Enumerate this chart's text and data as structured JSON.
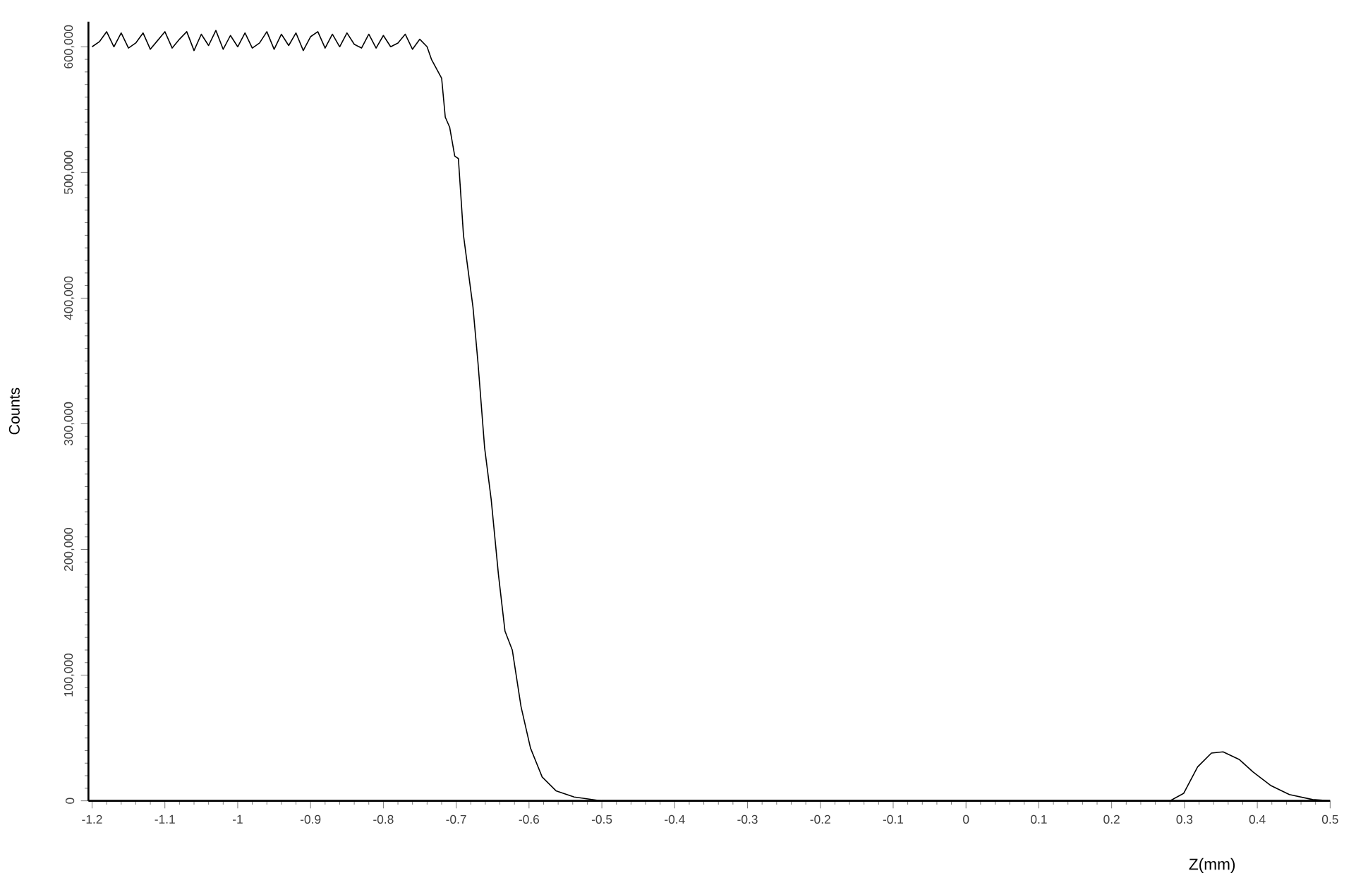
{
  "chart_data": {
    "type": "line",
    "xlabel": "Z(mm)",
    "ylabel": "Counts",
    "xlim": [
      -1.205,
      0.5
    ],
    "ylim": [
      0,
      620000
    ],
    "xticks": [
      -1.2,
      -1.1,
      -1,
      -0.9,
      -0.8,
      -0.7,
      -0.6,
      -0.5,
      -0.4,
      -0.3,
      -0.2,
      -0.1,
      0,
      0.1,
      0.2,
      0.3,
      0.4,
      0.5
    ],
    "yticks": [
      0,
      {
        "value": 100000,
        "label": "100,000"
      },
      {
        "value": 200000,
        "label": "200,000"
      },
      {
        "value": 300000,
        "label": "300,000"
      },
      {
        "value": 400000,
        "label": "400,000"
      },
      {
        "value": 500000,
        "label": "500,000"
      },
      {
        "value": 600000,
        "label": "600,000"
      }
    ],
    "grid": false,
    "marker": "none",
    "line_style": "solid",
    "series": [
      {
        "color": "#000000",
        "x": [
          -1.2,
          -1.19,
          -1.18,
          -1.17,
          -1.16,
          -1.15,
          -1.14,
          -1.13,
          -1.12,
          -1.11,
          -1.1,
          -1.09,
          -1.08,
          -1.07,
          -1.06,
          -1.05,
          -1.04,
          -1.03,
          -1.02,
          -1.01,
          -1.0,
          -0.99,
          -0.98,
          -0.97,
          -0.96,
          -0.95,
          -0.94,
          -0.93,
          -0.92,
          -0.91,
          -0.9,
          -0.89,
          -0.88,
          -0.87,
          -0.86,
          -0.85,
          -0.84,
          -0.83,
          -0.82,
          -0.81,
          -0.8,
          -0.79,
          -0.78,
          -0.77,
          -0.76,
          -0.75,
          -0.74,
          -0.734,
          -0.72,
          -0.715,
          -0.709,
          -0.702,
          -0.697,
          -0.69,
          -0.677,
          -0.67,
          -0.661,
          -0.652,
          -0.642,
          -0.633,
          -0.623,
          -0.611,
          -0.598,
          -0.582,
          -0.563,
          -0.538,
          -0.5,
          0.28,
          0.299,
          0.318,
          0.337,
          0.353,
          0.375,
          0.394,
          0.419,
          0.444,
          0.476,
          0.5
        ],
        "values": [
          600000,
          604000,
          612000,
          600000,
          611000,
          599000,
          603000,
          611000,
          598000,
          605000,
          612000,
          599000,
          606000,
          612000,
          597000,
          610000,
          601000,
          613000,
          598000,
          609000,
          600000,
          611000,
          599000,
          603000,
          612000,
          598000,
          610000,
          601000,
          611000,
          597000,
          608000,
          612000,
          599000,
          610000,
          600000,
          611000,
          602000,
          599000,
          610000,
          599000,
          609000,
          600000,
          603000,
          610000,
          598000,
          606000,
          600000,
          590000,
          575000,
          544000,
          536000,
          513000,
          511000,
          450000,
          393000,
          348000,
          281000,
          240000,
          180000,
          135000,
          120000,
          75000,
          42000,
          19000,
          8000,
          3000,
          0,
          0,
          6000,
          27000,
          38000,
          39000,
          33000,
          23000,
          12000,
          5000,
          1000,
          0
        ]
      }
    ]
  }
}
